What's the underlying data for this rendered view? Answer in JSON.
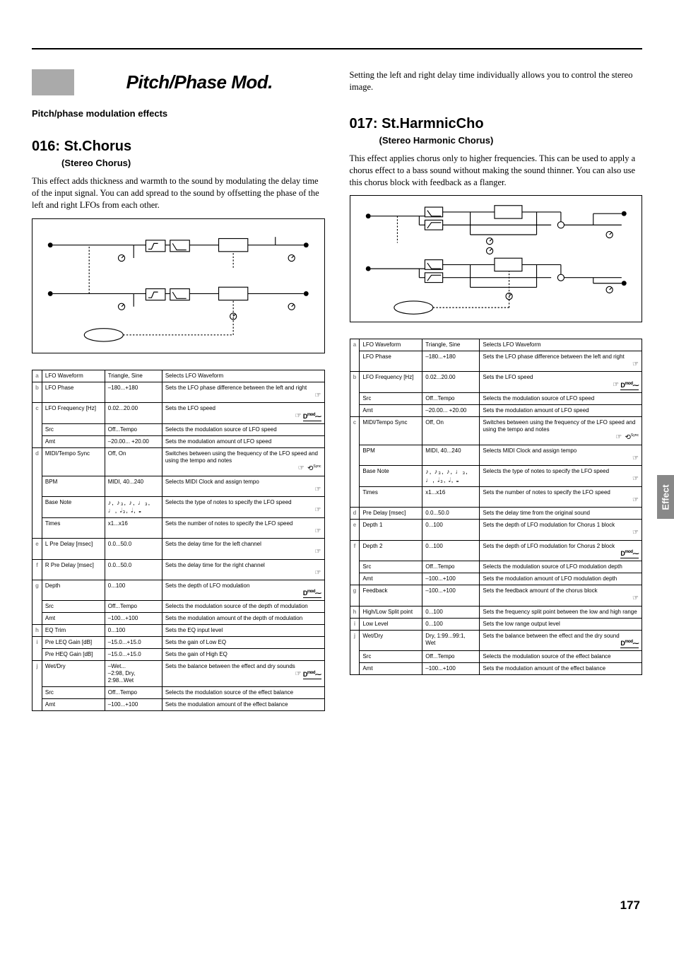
{
  "section": {
    "title": "Pitch/Phase Mod.",
    "subheading": "Pitch/phase modulation effects"
  },
  "sideTab": "Effect",
  "pageNumber": "177",
  "effects": [
    {
      "number": "016",
      "name": "St.Chorus",
      "subtitle": "(Stereo Chorus)",
      "description": "This effect adds thickness and warmth to the sound by modulating the delay time of the input signal. You can add spread to the sound by offsetting the phase of the left and right LFOs from each other.",
      "diagram": "stchorus",
      "groups": [
        {
          "label": "a",
          "rows": [
            {
              "name": "LFO Waveform",
              "range": "Triangle, Sine",
              "desc": "Selects LFO Waveform"
            }
          ]
        },
        {
          "label": "b",
          "rows": [
            {
              "name": "LFO Phase",
              "range": [
                "–180...+180"
              ],
              "desc": "Sets the LFO phase difference between the left and right",
              "icons": [
                "link"
              ]
            }
          ]
        },
        {
          "label": "c",
          "rows": [
            {
              "name": "LFO Frequency [Hz]",
              "range": "0.02...20.00",
              "desc": "Sets the LFO speed",
              "icons": [
                "link",
                "dmod"
              ]
            },
            {
              "name": "Src",
              "range": "Off...Tempo",
              "desc": "Selects the modulation source of LFO speed"
            },
            {
              "name": "Amt",
              "range": [
                "–20.00... +20.00"
              ],
              "desc": "Sets the modulation amount of LFO speed"
            }
          ]
        },
        {
          "label": "d",
          "rows": [
            {
              "name": "MIDI/Tempo Sync",
              "range": "Off, On",
              "desc": "Switches between using the frequency of the LFO speed and using the tempo and notes",
              "icons": [
                "link",
                "sync"
              ]
            },
            {
              "name": "BPM",
              "range": "MIDI, 40...240",
              "desc": "Selects MIDI Clock and assign tempo",
              "icons": [
                "link"
              ]
            },
            {
              "name": "Base Note",
              "range": "notes",
              "desc": "Selects the type of notes to specify the LFO speed",
              "icons": [
                "link"
              ]
            },
            {
              "name": "Times",
              "range": "x1...x16",
              "desc": "Sets the number of notes to specify the LFO speed",
              "icons": [
                "link"
              ]
            }
          ]
        },
        {
          "label": "e",
          "rows": [
            {
              "name": "L Pre Delay [msec]",
              "range": "0.0...50.0",
              "desc": "Sets the delay time for the left channel",
              "icons": [
                "link"
              ]
            }
          ]
        },
        {
          "label": "f",
          "rows": [
            {
              "name": "R Pre Delay [msec]",
              "range": "0.0...50.0",
              "desc": "Sets the delay time for the right channel",
              "icons": [
                "link"
              ]
            }
          ]
        },
        {
          "label": "g",
          "rows": [
            {
              "name": "Depth",
              "range": "0...100",
              "desc": "Sets the depth of LFO modulation",
              "icons": [
                "dmod"
              ]
            },
            {
              "name": "Src",
              "range": "Off...Tempo",
              "desc": "Selects the modulation source of the depth of modulation"
            },
            {
              "name": "Amt",
              "range": [
                "–100...+100"
              ],
              "desc": "Sets the modulation amount of the depth of modulation"
            }
          ]
        },
        {
          "label": "h",
          "rows": [
            {
              "name": "EQ Trim",
              "range": "0...100",
              "desc": "Sets the EQ input level"
            }
          ]
        },
        {
          "label": "i",
          "rows": [
            {
              "name": "Pre LEQ Gain [dB]",
              "range": [
                "–15.0...+15.0"
              ],
              "desc": "Sets the gain of Low EQ"
            },
            {
              "name": "Pre HEQ Gain [dB]",
              "range": [
                "–15.0...+15.0"
              ],
              "desc": "Sets the gain of High EQ"
            }
          ]
        },
        {
          "label": "j",
          "rows": [
            {
              "name": "Wet/Dry",
              "range": [
                "–Wet...",
                "–2:98, Dry, 2:98...Wet"
              ],
              "desc": "Sets the balance between the effect and dry sounds",
              "icons": [
                "link",
                "dmod"
              ]
            },
            {
              "name": "Src",
              "range": "Off...Tempo",
              "desc": "Selects the modulation source of the effect balance"
            },
            {
              "name": "Amt",
              "range": [
                "–100...+100"
              ],
              "desc": "Sets the modulation amount of the effect balance"
            }
          ]
        }
      ]
    },
    {
      "number": "017",
      "name": "St.HarmnicCho",
      "subtitle": "(Stereo Harmonic Chorus)",
      "description": "This effect applies chorus only to higher frequencies. This can be used to apply a chorus effect to a bass sound without making the sound thinner. You can also use this chorus block with feedback as a flanger.",
      "intro": "Setting the left and right delay time individually allows you to control the stereo image.",
      "diagram": "stharmonic",
      "groups": [
        {
          "label": "a",
          "rows": [
            {
              "name": "LFO Waveform",
              "range": "Triangle, Sine",
              "desc": "Selects LFO Waveform"
            },
            {
              "name": "LFO Phase",
              "range": [
                "–180...+180"
              ],
              "desc": "Sets the LFO phase difference between the left and right",
              "icons": [
                "link"
              ]
            }
          ]
        },
        {
          "label": "b",
          "rows": [
            {
              "name": "LFO Frequency [Hz]",
              "range": "0.02...20.00",
              "desc": "Sets the LFO speed",
              "icons": [
                "link",
                "dmod"
              ]
            },
            {
              "name": "Src",
              "range": "Off...Tempo",
              "desc": "Selects the modulation source of LFO speed"
            },
            {
              "name": "Amt",
              "range": [
                "–20.00... +20.00"
              ],
              "desc": "Sets the modulation amount of LFO speed"
            }
          ]
        },
        {
          "label": "c",
          "rows": [
            {
              "name": "MIDI/Tempo Sync",
              "range": "Off, On",
              "desc": "Switches between using the frequency of the LFO speed and using the tempo and notes",
              "icons": [
                "link",
                "sync"
              ]
            },
            {
              "name": "BPM",
              "range": "MIDI, 40...240",
              "desc": "Selects MIDI Clock and assign tempo",
              "icons": [
                "link"
              ]
            },
            {
              "name": "Base Note",
              "range": "notes",
              "desc": "Selects the type of notes to specify the LFO speed",
              "icons": [
                "link"
              ]
            },
            {
              "name": "Times",
              "range": "x1...x16",
              "desc": "Sets the number of notes to specify the LFO speed",
              "icons": [
                "link"
              ]
            }
          ]
        },
        {
          "label": "d",
          "rows": [
            {
              "name": "Pre Delay [msec]",
              "range": "0.0...50.0",
              "desc": "Sets the delay time from the original sound"
            }
          ]
        },
        {
          "label": "e",
          "rows": [
            {
              "name": "Depth 1",
              "range": "0...100",
              "desc": "Sets the depth of LFO modulation for Chorus 1 block",
              "icons": [
                "link"
              ]
            }
          ]
        },
        {
          "label": "f",
          "rows": [
            {
              "name": "Depth 2",
              "range": "0...100",
              "desc": "Sets the depth of LFO modulation for Chorus 2 block",
              "icons": [
                "dmod"
              ]
            },
            {
              "name": "Src",
              "range": "Off...Tempo",
              "desc": "Selects the modulation source of LFO modulation depth"
            },
            {
              "name": "Amt",
              "range": [
                "–100...+100"
              ],
              "desc": "Sets the modulation amount of LFO modulation depth"
            }
          ]
        },
        {
          "label": "g",
          "rows": [
            {
              "name": "Feedback",
              "range": [
                "–100...+100"
              ],
              "desc": "Sets the feedback amount of the chorus block",
              "icons": [
                "link"
              ]
            }
          ]
        },
        {
          "label": "h",
          "rows": [
            {
              "name": "High/Low Split point",
              "range": "0...100",
              "desc": "Sets the frequency split point between the low and high range"
            }
          ]
        },
        {
          "label": "i",
          "rows": [
            {
              "name": "Low Level",
              "range": "0...100",
              "desc": "Sets the low range output level"
            }
          ]
        },
        {
          "label": "j",
          "rows": [
            {
              "name": "Wet/Dry",
              "range": "Dry, 1:99...99:1, Wet",
              "desc": "Sets the balance between the effect and the dry sound",
              "icons": [
                "dmod"
              ]
            },
            {
              "name": "Src",
              "range": "Off...Tempo",
              "desc": "Selects the modulation source of the effect balance"
            },
            {
              "name": "Amt",
              "range": [
                "–100...+100"
              ],
              "desc": "Sets the modulation amount of the effect balance"
            }
          ]
        }
      ]
    }
  ]
}
